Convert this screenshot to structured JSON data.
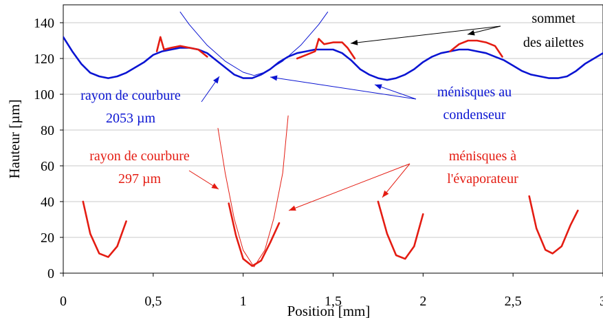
{
  "chart_data": {
    "type": "line",
    "xlabel": "Position [mm]",
    "ylabel": "Hauteur [µm]",
    "xlim": [
      0,
      3
    ],
    "ylim": [
      0,
      150
    ],
    "x_ticks": [
      0,
      0.5,
      1,
      1.5,
      2,
      2.5,
      3
    ],
    "x_tick_labels": [
      "0",
      "0,5",
      "1",
      "1,5",
      "2",
      "2,5",
      "3"
    ],
    "y_ticks": [
      0,
      20,
      40,
      60,
      80,
      100,
      120,
      140
    ],
    "y_tick_labels": [
      "0",
      "20",
      "40",
      "60",
      "80",
      "100",
      "120",
      "140"
    ],
    "grid": "horizontal",
    "colors": {
      "condenser": "#0a14d2",
      "evaporator": "#e41c12",
      "fin_tops": "#e41c12",
      "arrows_black": "#000000"
    },
    "series": [
      {
        "role": "condenser-profile",
        "color": "#0a14d2",
        "x": [
          0,
          0.05,
          0.1,
          0.15,
          0.2,
          0.25,
          0.3,
          0.35,
          0.4,
          0.45,
          0.5,
          0.55,
          0.6,
          0.65,
          0.7,
          0.75,
          0.8,
          0.85,
          0.9,
          0.95,
          1.0,
          1.05,
          1.1,
          1.15,
          1.2,
          1.25,
          1.3,
          1.35,
          1.4,
          1.45,
          1.5,
          1.55,
          1.6,
          1.65,
          1.7,
          1.75,
          1.8,
          1.85,
          1.9,
          1.95,
          2.0,
          2.05,
          2.1,
          2.15,
          2.2,
          2.25,
          2.3,
          2.35,
          2.4,
          2.45,
          2.5,
          2.55,
          2.6,
          2.65,
          2.7,
          2.75,
          2.8,
          2.85,
          2.9,
          2.95,
          3.0
        ],
        "y": [
          132,
          124,
          117,
          112,
          110,
          109,
          110,
          112,
          115,
          118,
          122,
          124,
          125,
          126,
          126,
          125,
          123,
          119,
          115,
          111,
          109,
          109,
          111,
          114,
          118,
          121,
          123,
          124,
          125,
          125,
          125,
          123,
          119,
          114,
          111,
          109,
          108,
          109,
          111,
          114,
          118,
          121,
          123,
          124,
          125,
          125,
          124,
          123,
          121,
          119,
          116,
          113,
          111,
          110,
          109,
          109,
          110,
          113,
          117,
          120,
          123
        ]
      },
      {
        "role": "fin-top-1",
        "color": "#e41c12",
        "x": [
          0.52,
          0.54,
          0.56,
          0.6,
          0.65,
          0.7,
          0.75,
          0.8
        ],
        "y": [
          124,
          132,
          125,
          126,
          127,
          126,
          125,
          121
        ]
      },
      {
        "role": "fin-top-2",
        "color": "#e41c12",
        "x": [
          1.3,
          1.35,
          1.4,
          1.42,
          1.45,
          1.5,
          1.55,
          1.58,
          1.62
        ],
        "y": [
          120,
          122,
          124,
          131,
          128,
          129,
          129,
          126,
          120
        ]
      },
      {
        "role": "fin-top-3",
        "color": "#e41c12",
        "x": [
          2.15,
          2.2,
          2.25,
          2.3,
          2.35,
          2.4,
          2.44
        ],
        "y": [
          124,
          128,
          130,
          130,
          129,
          127,
          121
        ]
      },
      {
        "role": "meniscus-evap-1",
        "color": "#e41c12",
        "x": [
          0.11,
          0.15,
          0.2,
          0.25,
          0.3,
          0.35
        ],
        "y": [
          40,
          22,
          11,
          9,
          15,
          29
        ]
      },
      {
        "role": "meniscus-evap-2",
        "color": "#e41c12",
        "x": [
          0.92,
          0.96,
          1.0,
          1.05,
          1.1,
          1.15,
          1.2
        ],
        "y": [
          39,
          21,
          8,
          4,
          7,
          17,
          28
        ]
      },
      {
        "role": "meniscus-evap-3",
        "color": "#e41c12",
        "x": [
          1.75,
          1.8,
          1.85,
          1.9,
          1.95,
          2.0
        ],
        "y": [
          40,
          22,
          10,
          8,
          15,
          33
        ]
      },
      {
        "role": "meniscus-evap-4",
        "color": "#e41c12",
        "x": [
          2.59,
          2.63,
          2.68,
          2.72,
          2.77,
          2.82,
          2.86
        ],
        "y": [
          43,
          25,
          13,
          11,
          15,
          27,
          35
        ]
      },
      {
        "role": "fit-circle-condenser",
        "color": "#0a14d2",
        "x": [
          0.65,
          0.7,
          0.8,
          0.9,
          1.0,
          1.06,
          1.12,
          1.22,
          1.32,
          1.42,
          1.47
        ],
        "y": [
          146,
          139,
          127.4,
          118.5,
          112.3,
          110.5,
          112.3,
          118.5,
          127.4,
          139,
          146
        ]
      },
      {
        "role": "fit-circle-evaporator",
        "color": "#e41c12",
        "x": [
          0.86,
          0.9,
          0.95,
          1.0,
          1.06,
          1.12,
          1.17,
          1.22,
          1.25
        ],
        "y": [
          81,
          56,
          30.5,
          12.8,
          3.5,
          12.8,
          30.5,
          56,
          88
        ]
      }
    ],
    "annotations": {
      "fin_tops": [
        "sommet",
        "des ailettes"
      ],
      "condenser_menisci": [
        "ménisques au",
        "condenseur"
      ],
      "condenser_radius": [
        "rayon de courbure",
        "2053 µm"
      ],
      "evaporator_radius": [
        "rayon de courbure",
        "297 µm"
      ],
      "evaporator_menisci": [
        "ménisques à",
        "l'évaporateur"
      ]
    }
  }
}
